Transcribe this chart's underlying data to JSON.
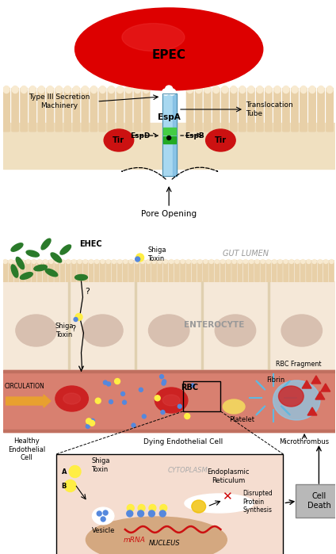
{
  "bg_color": "#ffffff",
  "panel1": {
    "epec_color": "#dd0000",
    "epec_label": "EPEC",
    "tube_color_top": "#a8d8f0",
    "tube_color_bot": "#78b8e0",
    "espa_label": "EspA",
    "espd_label": "EspD",
    "espb_label": "EspB",
    "tir_label": "Tir",
    "tir_color": "#cc1111",
    "green_color1": "#44cc44",
    "green_color2": "#22aa22",
    "pore_label": "Pore Opening",
    "type3_label": "Type III Secretion\nMachinery",
    "translocation_label": "Translocation\nTube",
    "membrane_color": "#f0e0c0",
    "villi_color": "#e8d0a8",
    "villi_tip": "#f8ead0"
  },
  "panel2": {
    "gut_lumen_label": "GUT LUMEN",
    "ehec_label": "EHEC",
    "shiga_toxin_label": "Shiga\nToxin",
    "enterocyte_label": "ENTEROCYTE",
    "circulation_label": "CIRCULATION",
    "rbc_label": "RBC",
    "fibrin_label": "Fibrin",
    "platelet_label": "Platelet",
    "rbc_fragment_label": "RBC Fragment",
    "healthy_label": "Healthy\nEndothelial\nCell",
    "dying_label": "Dying Endothelial Cell",
    "microthrombus_label": "Microthrombus",
    "cell_death_label": "Cell\nDeath",
    "disrupted_label": "Disrupted\nProtein\nSynthesis",
    "endo_ret_label": "Endoplasmic\nReticulum",
    "cytoplasm_label": "CYTOPLASM",
    "nucleus_label": "NUCLEUS",
    "vesicle_label": "Vesicle",
    "mrna_label": "mRNA",
    "epi_color": "#f5e8d8",
    "epi_border": "#e0d0b0",
    "epi_nucleus": "#d8c0b0",
    "blood_color": "#d88070",
    "blood_wall": "#c07060",
    "ehec_color": "#2a7a2a",
    "rbc_color": "#cc2222",
    "platelet_color": "#f0d060",
    "fibrin_color": "#60b8e0",
    "inset_bg": "#f5ddd0",
    "shiga_y_color": "#ffee44",
    "shiga_b_color": "#5588dd",
    "cell_death_bg": "#b8b8b8"
  }
}
